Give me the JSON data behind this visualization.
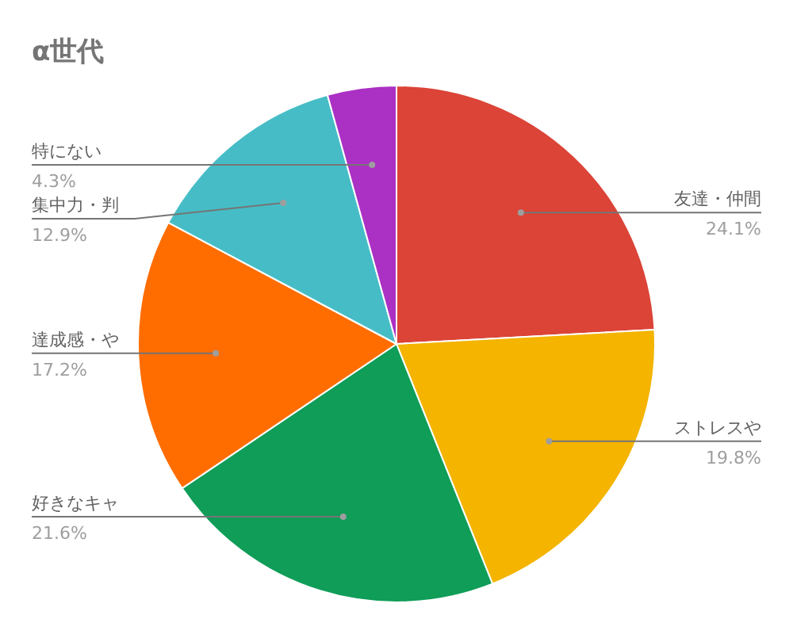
{
  "chart_data": {
    "type": "pie",
    "title": "α世代",
    "categories": [
      "友達・仲間",
      "ストレスや",
      "好きなキャ",
      "達成感・や",
      "集中力・判",
      "特にない"
    ],
    "values": [
      24.1,
      19.8,
      21.6,
      17.2,
      12.9,
      4.3
    ],
    "value_labels": [
      "24.1%",
      "19.8%",
      "21.6%",
      "17.2%",
      "12.9%",
      "4.3%"
    ],
    "colors": [
      "#db4437",
      "#f4b400",
      "#0f9d58",
      "#ff6d01",
      "#46bdc6",
      "#ab30c4"
    ]
  }
}
